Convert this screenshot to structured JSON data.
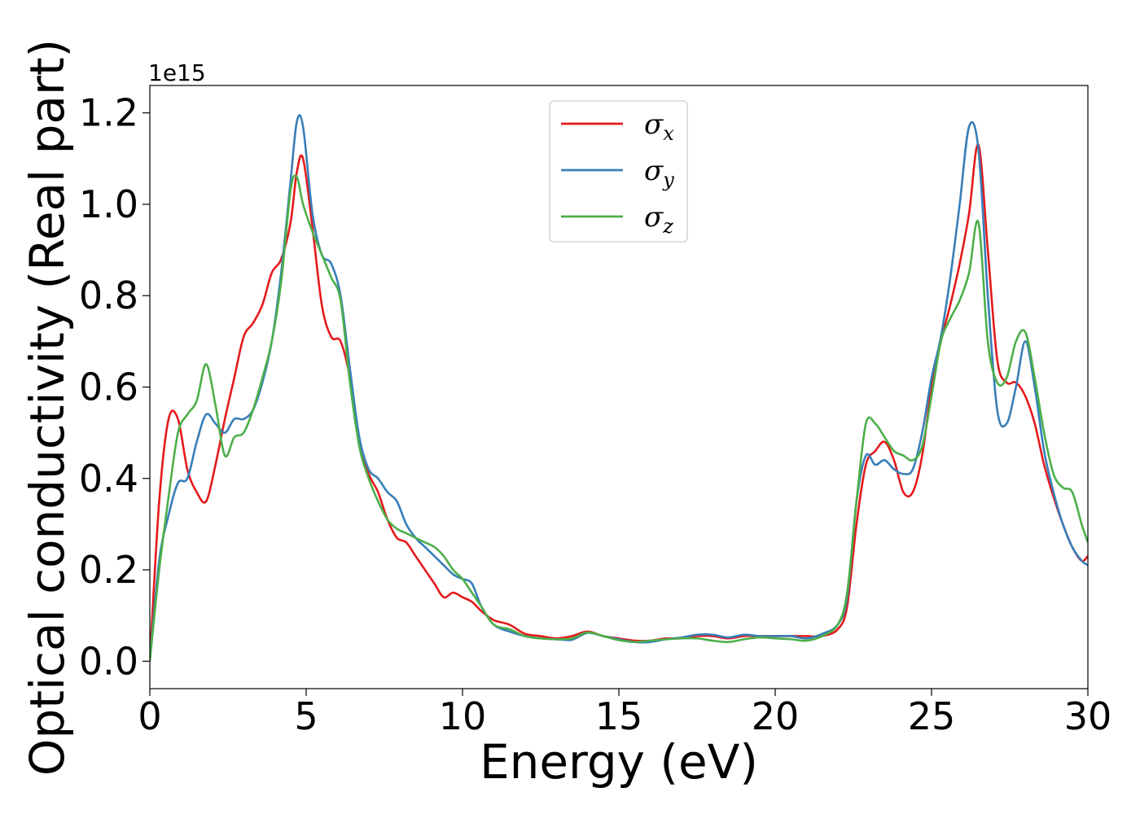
{
  "chart_data": {
    "type": "line",
    "title": "",
    "xlabel": "Energy (eV)",
    "ylabel": "Optical conductivity (Real part)",
    "y_offset_label": "1e15",
    "xlim": [
      0,
      30
    ],
    "ylim": [
      -0.06,
      1.26
    ],
    "xticks": [
      0,
      5,
      10,
      15,
      20,
      25,
      30
    ],
    "xtick_labels": [
      "0",
      "5",
      "10",
      "15",
      "20",
      "25",
      "30"
    ],
    "yticks": [
      0.0,
      0.2,
      0.4,
      0.6,
      0.8,
      1.0,
      1.2
    ],
    "ytick_labels": [
      "0.0",
      "0.2",
      "0.4",
      "0.6",
      "0.8",
      "1.0",
      "1.2"
    ],
    "grid": false,
    "legend_position": "top-center",
    "x": [
      0,
      0.3,
      0.6,
      0.9,
      1.2,
      1.5,
      1.8,
      2.1,
      2.4,
      2.7,
      3.0,
      3.3,
      3.6,
      3.9,
      4.2,
      4.5,
      4.7,
      4.9,
      5.2,
      5.5,
      5.8,
      6.1,
      6.4,
      6.7,
      7.0,
      7.3,
      7.6,
      7.9,
      8.2,
      8.5,
      8.8,
      9.1,
      9.4,
      9.7,
      10.0,
      10.3,
      10.6,
      11.0,
      11.5,
      12.0,
      12.5,
      13.0,
      13.5,
      14.0,
      14.5,
      15.0,
      15.5,
      16.0,
      16.5,
      17.0,
      17.5,
      18.0,
      18.5,
      19.0,
      19.5,
      20.0,
      20.5,
      21.0,
      21.5,
      22.0,
      22.3,
      22.6,
      22.9,
      23.2,
      23.5,
      23.8,
      24.1,
      24.4,
      24.7,
      25.0,
      25.3,
      25.6,
      25.9,
      26.2,
      26.5,
      26.8,
      27.1,
      27.4,
      27.7,
      28.0,
      28.3,
      28.6,
      28.9,
      29.2,
      29.5,
      29.8,
      30.0
    ],
    "series": [
      {
        "name": "σx",
        "legend_symbol": "σ",
        "legend_subscript": "x",
        "color": "#e41a1c",
        "values": [
          0.0,
          0.35,
          0.53,
          0.53,
          0.42,
          0.37,
          0.35,
          0.43,
          0.53,
          0.62,
          0.71,
          0.74,
          0.78,
          0.85,
          0.88,
          0.96,
          1.07,
          1.1,
          0.95,
          0.78,
          0.71,
          0.7,
          0.62,
          0.48,
          0.41,
          0.37,
          0.31,
          0.27,
          0.26,
          0.23,
          0.2,
          0.17,
          0.14,
          0.15,
          0.14,
          0.13,
          0.11,
          0.09,
          0.08,
          0.06,
          0.055,
          0.05,
          0.055,
          0.065,
          0.055,
          0.05,
          0.045,
          0.045,
          0.05,
          0.05,
          0.055,
          0.055,
          0.05,
          0.055,
          0.055,
          0.055,
          0.055,
          0.055,
          0.055,
          0.07,
          0.12,
          0.3,
          0.43,
          0.46,
          0.48,
          0.44,
          0.37,
          0.37,
          0.45,
          0.6,
          0.7,
          0.78,
          0.87,
          0.98,
          1.13,
          0.9,
          0.66,
          0.61,
          0.61,
          0.58,
          0.52,
          0.43,
          0.36,
          0.3,
          0.25,
          0.22,
          0.23
        ]
      },
      {
        "name": "σy",
        "legend_symbol": "σ",
        "legend_subscript": "y",
        "color": "#377eb8",
        "values": [
          0.0,
          0.22,
          0.32,
          0.39,
          0.4,
          0.48,
          0.54,
          0.52,
          0.5,
          0.53,
          0.53,
          0.55,
          0.61,
          0.7,
          0.85,
          1.05,
          1.18,
          1.17,
          0.98,
          0.89,
          0.87,
          0.8,
          0.64,
          0.49,
          0.42,
          0.4,
          0.37,
          0.35,
          0.3,
          0.27,
          0.25,
          0.23,
          0.21,
          0.19,
          0.18,
          0.17,
          0.12,
          0.08,
          0.065,
          0.055,
          0.05,
          0.048,
          0.047,
          0.062,
          0.055,
          0.048,
          0.042,
          0.042,
          0.048,
          0.052,
          0.058,
          0.058,
          0.052,
          0.058,
          0.055,
          0.055,
          0.055,
          0.05,
          0.06,
          0.08,
          0.14,
          0.35,
          0.45,
          0.43,
          0.44,
          0.42,
          0.41,
          0.42,
          0.5,
          0.62,
          0.71,
          0.84,
          1.0,
          1.17,
          1.12,
          0.8,
          0.55,
          0.52,
          0.6,
          0.7,
          0.6,
          0.46,
          0.37,
          0.3,
          0.25,
          0.22,
          0.21
        ]
      },
      {
        "name": "σz",
        "legend_symbol": "σ",
        "legend_subscript": "z",
        "color": "#4daf4a",
        "values": [
          0.0,
          0.2,
          0.36,
          0.5,
          0.54,
          0.57,
          0.65,
          0.56,
          0.45,
          0.49,
          0.5,
          0.55,
          0.62,
          0.7,
          0.83,
          1.03,
          1.06,
          1.0,
          0.94,
          0.89,
          0.84,
          0.79,
          0.61,
          0.47,
          0.4,
          0.35,
          0.31,
          0.29,
          0.28,
          0.27,
          0.26,
          0.25,
          0.23,
          0.2,
          0.18,
          0.15,
          0.12,
          0.08,
          0.07,
          0.055,
          0.05,
          0.048,
          0.05,
          0.063,
          0.055,
          0.046,
          0.042,
          0.045,
          0.048,
          0.05,
          0.05,
          0.045,
          0.042,
          0.048,
          0.052,
          0.05,
          0.048,
          0.045,
          0.055,
          0.08,
          0.15,
          0.35,
          0.52,
          0.52,
          0.49,
          0.46,
          0.45,
          0.44,
          0.47,
          0.58,
          0.7,
          0.75,
          0.79,
          0.85,
          0.96,
          0.7,
          0.61,
          0.62,
          0.7,
          0.72,
          0.62,
          0.5,
          0.41,
          0.38,
          0.37,
          0.3,
          0.26
        ]
      }
    ]
  }
}
